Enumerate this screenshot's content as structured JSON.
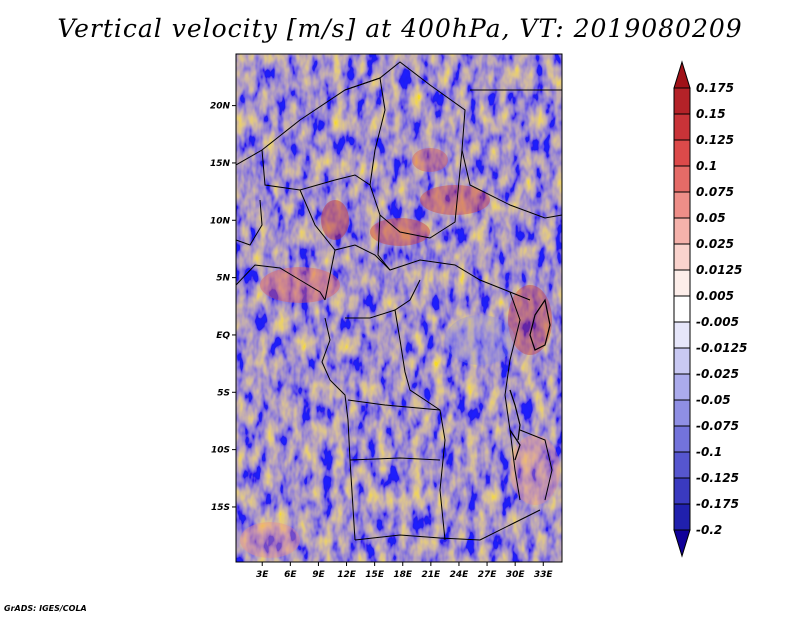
{
  "title": "Vertical velocity [m/s] at 400hPa, VT: 2019080209",
  "credit": "GrADS: IGES/COLA",
  "map": {
    "lat_labels": [
      "20N",
      "15N",
      "10N",
      "5N",
      "EQ",
      "5S",
      "10S",
      "15S"
    ],
    "lat_values": [
      20,
      15,
      10,
      5,
      0,
      -5,
      -10,
      -15
    ],
    "lon_labels": [
      "3E",
      "6E",
      "9E",
      "12E",
      "15E",
      "18E",
      "21E",
      "24E",
      "27E",
      "30E",
      "33E"
    ],
    "lon_values": [
      3,
      6,
      9,
      12,
      15,
      18,
      21,
      24,
      27,
      30,
      33
    ],
    "lon_range": [
      0.2,
      35.0
    ],
    "lat_range": [
      -19.8,
      24.5
    ]
  },
  "colorbar": {
    "labels": [
      "0.175",
      "0.15",
      "0.125",
      "0.1",
      "0.075",
      "0.05",
      "0.025",
      "0.0125",
      "0.005",
      "-0.005",
      "-0.0125",
      "-0.025",
      "-0.05",
      "-0.075",
      "-0.1",
      "-0.125",
      "-0.175",
      "-0.2"
    ],
    "colors": [
      "#a01218",
      "#b42228",
      "#c93338",
      "#dc4a4a",
      "#e56b67",
      "#ee8e88",
      "#f5b2ab",
      "#fad3cd",
      "#fdeeea",
      "#ffffff",
      "#e6e6fa",
      "#c9c9f3",
      "#ababec",
      "#8f8fe4",
      "#7373db",
      "#5656cf",
      "#3a3ac0",
      "#2020ad",
      "#100099"
    ]
  }
}
